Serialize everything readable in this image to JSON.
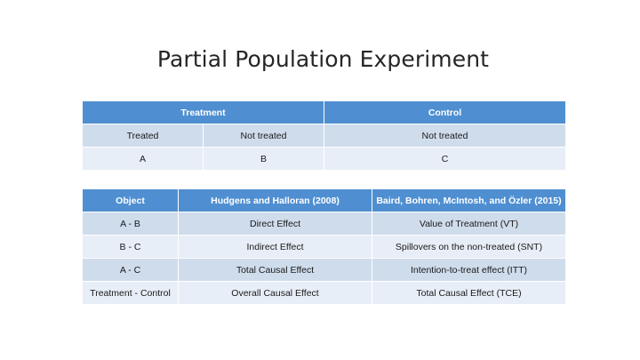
{
  "slide": {
    "title": "Partial Population Experiment"
  },
  "design_table": {
    "header": [
      "Treatment",
      "Control"
    ],
    "rows": [
      [
        "Treated",
        "Not treated",
        "Not treated"
      ],
      [
        "A",
        "B",
        "C"
      ]
    ]
  },
  "effects_table": {
    "header": [
      "Object",
      "Hudgens and Halloran (2008)",
      "Baird, Bohren, McIntosh, and Özler (2015)"
    ],
    "rows": [
      [
        "A - B",
        "Direct Effect",
        "Value of Treatment (VT)"
      ],
      [
        "B - C",
        "Indirect Effect",
        "Spillovers on the non-treated (SNT)"
      ],
      [
        "A - C",
        "Total Causal Effect",
        "Intention-to-treat effect (ITT)"
      ],
      [
        "Treatment - Control",
        "Overall Causal Effect",
        "Total Causal Effect (TCE)"
      ]
    ]
  },
  "colors": {
    "header_fill": "#4f8fd1",
    "band_dark": "#cfdcec",
    "band_light": "#e8eef7"
  }
}
